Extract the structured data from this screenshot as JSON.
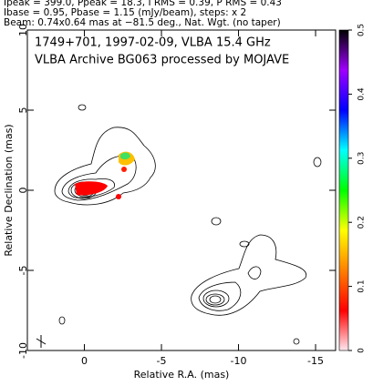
{
  "chart_data": {
    "type": "contour",
    "header": [
      "Ipeak = 399.0, Ppeak = 18.3, I RMS = 0.39, P RMS = 0.43",
      "Ibase = 0.95, Pbase = 1.15 (mJy/beam), steps: x 2",
      "Beam: 0.74x0.64 mas at −81.5 deg., Nat. Wgt. (no taper)"
    ],
    "title": [
      "1749+701, 1997-02-09, VLBA 15.4 GHz",
      "VLBA Archive BG063 processed by MOJAVE"
    ],
    "xlabel": "Relative R.A. (mas)",
    "ylabel": "Relative Declination (mas)",
    "xlim": [
      3.7,
      -16.3
    ],
    "xticks": [
      0,
      -5,
      -10,
      -15
    ],
    "ylim": [
      -10,
      10
    ],
    "yticks": [
      -10,
      -5,
      0,
      5,
      10
    ],
    "colorbar": {
      "lim": [
        0,
        0.5
      ],
      "ticks": [
        0,
        0.1,
        0.2,
        0.3,
        0.4,
        0.5
      ],
      "colors": [
        "#ffe8f0",
        "#ff0000",
        "#ff8000",
        "#ffff00",
        "#00ff00",
        "#00ffff",
        "#0000ff",
        "#a000ff",
        "#000000"
      ]
    }
  }
}
